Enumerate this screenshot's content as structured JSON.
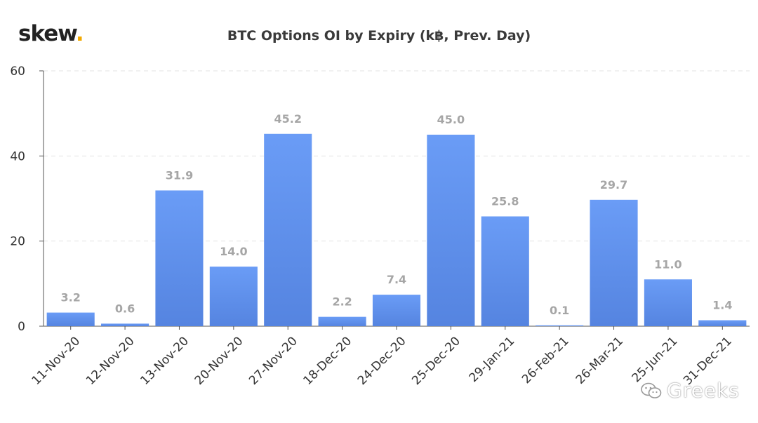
{
  "brand": {
    "name": "skew",
    "dot": ".",
    "accent": "#f2a900"
  },
  "watermark": {
    "text": "Greeks"
  },
  "chart_data": {
    "type": "bar",
    "title": "BTC Options OI by Expiry (k฿, Prev. Day)",
    "xlabel": "",
    "ylabel": "",
    "ylim": [
      0,
      60
    ],
    "yticks": [
      0,
      20,
      40,
      60
    ],
    "grid": true,
    "bar_color_top": "#6a9cf6",
    "bar_color_bottom": "#5584e0",
    "label_color": "#a6a6a6",
    "categories": [
      "11-Nov-20",
      "12-Nov-20",
      "13-Nov-20",
      "20-Nov-20",
      "27-Nov-20",
      "18-Dec-20",
      "24-Dec-20",
      "25-Dec-20",
      "29-Jan-21",
      "26-Feb-21",
      "26-Mar-21",
      "25-Jun-21",
      "31-Dec-21"
    ],
    "values": [
      3.2,
      0.6,
      31.9,
      14.0,
      45.2,
      2.2,
      7.4,
      45.0,
      25.8,
      0.1,
      29.7,
      11.0,
      1.4
    ],
    "value_labels": [
      "3.2",
      "0.6",
      "31.9",
      "14.0",
      "45.2",
      "2.2",
      "7.4",
      "45.0",
      "25.8",
      "0.1",
      "29.7",
      "11.0",
      "1.4"
    ]
  }
}
